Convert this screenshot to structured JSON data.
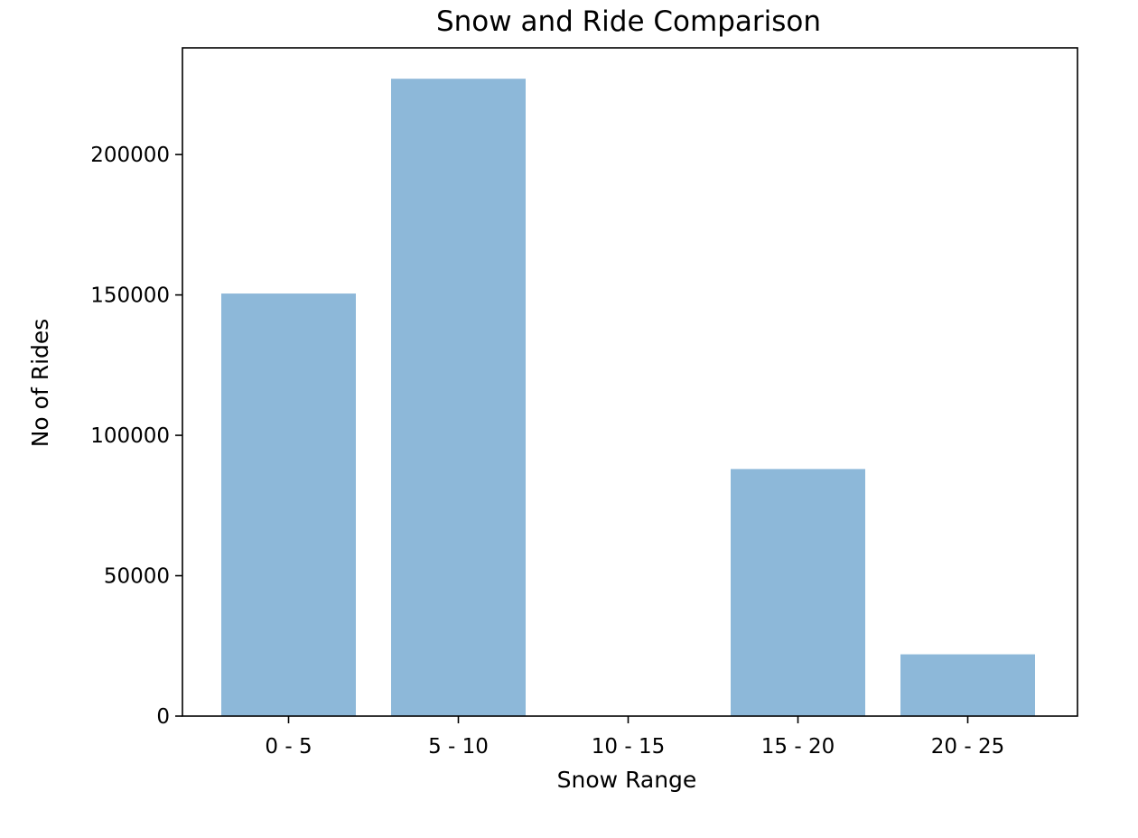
{
  "chart_data": {
    "type": "bar",
    "title": "Snow and Ride Comparison",
    "xlabel": "Snow Range",
    "ylabel": "No of Rides",
    "categories": [
      "0 - 5",
      "5 - 10",
      "10 - 15",
      "15 - 20",
      "20 - 25"
    ],
    "values": [
      150500,
      227000,
      0,
      88000,
      22000
    ],
    "ylim": [
      0,
      238000
    ],
    "yticks": [
      0,
      50000,
      100000,
      150000,
      200000
    ],
    "ytick_labels": [
      "0",
      "50000",
      "100000",
      "150000",
      "200000"
    ],
    "bar_color": "#8db8d9",
    "grid": false,
    "legend": "none"
  }
}
